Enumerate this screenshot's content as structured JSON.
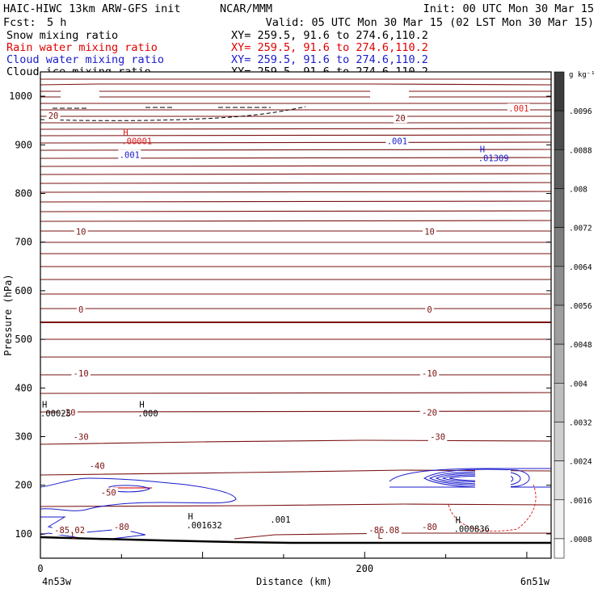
{
  "header": {
    "model": "HAIC-HIWC 13km ARW-GFS init",
    "org": "NCAR/MMM",
    "init": "Init: 00 UTC Mon 30 Mar 15",
    "fcst_label": "Fcst:",
    "fcst_value": "5 h",
    "valid": "Valid: 05 UTC Mon 30 Mar 15 (02 LST Mon 30 Mar 15)",
    "fields": [
      {
        "name": "Snow mixing ratio",
        "xy": "XY= 259.5, 91.6 to 274.6,110.2",
        "color": "#000000"
      },
      {
        "name": "Rain water mixing ratio",
        "xy": "XY= 259.5, 91.6 to 274.6,110.2",
        "color": "#e00000"
      },
      {
        "name": "Cloud water mixing ratio",
        "xy": "XY= 259.5, 91.6 to 274.6,110.2",
        "color": "#1a1acc"
      },
      {
        "name": "Cloud ice mixing ratio",
        "xy": "XY= 259.5, 91.6 to 274.6,110.2",
        "color": "#000000"
      }
    ]
  },
  "colors": {
    "temperature": "#7a1010",
    "rain": "#e02020",
    "cloud_water": "#1a1acc",
    "snow": "#000000"
  },
  "chart_data": {
    "type": "cross-section contour",
    "xlabel": "Distance (km)",
    "ylabel": "Pressure (hPa)",
    "x_ticks": [
      0,
      200
    ],
    "y_ticks": [
      100,
      200,
      300,
      400,
      500,
      600,
      700,
      800,
      900,
      1000
    ],
    "xlim": [
      0,
      315
    ],
    "ylim": [
      1050,
      50
    ],
    "left_endpoint": "4n53w",
    "right_endpoint": "6n51w",
    "colorbar": {
      "units": "g kg⁻¹",
      "labels": [
        ".0096",
        ".0088",
        ".008",
        ".0072",
        ".0064",
        ".0056",
        ".0048",
        ".004",
        ".0032",
        ".0024",
        ".0016",
        ".0008"
      ]
    },
    "temperature_contours": [
      {
        "value": "-85.02",
        "x": 18,
        "p": 108
      },
      {
        "value": "-86.08",
        "x": 212,
        "p": 108
      },
      {
        "value": "-80",
        "x": 50,
        "p": 115
      },
      {
        "value": "-80",
        "x": 240,
        "p": 115
      },
      {
        "value": "-50",
        "x": 42,
        "p": 185
      },
      {
        "value": "-40",
        "x": 35,
        "p": 240
      },
      {
        "value": "-30",
        "x": 25,
        "p": 300
      },
      {
        "value": "-30",
        "x": 245,
        "p": 300
      },
      {
        "value": "-20",
        "x": 17,
        "p": 350
      },
      {
        "value": "-20",
        "x": 240,
        "p": 350
      },
      {
        "value": "-10",
        "x": 25,
        "p": 430
      },
      {
        "value": "-10",
        "x": 240,
        "p": 430
      },
      {
        "value": "0",
        "x": 25,
        "p": 562
      },
      {
        "value": "0",
        "x": 240,
        "p": 562
      },
      {
        "value": "10",
        "x": 25,
        "p": 722
      },
      {
        "value": "10",
        "x": 240,
        "p": 722
      },
      {
        "value": "20",
        "x": 8,
        "p": 960
      },
      {
        "value": "20",
        "x": 222,
        "p": 955
      }
    ],
    "extrema_labels": [
      {
        "mark": "L",
        "x": 18,
        "p": 90,
        "color": "#7a1010"
      },
      {
        "mark": "L",
        "x": 207,
        "p": 90,
        "color": "#7a1010"
      },
      {
        "mark": "H",
        "x": 90,
        "p": 130,
        "value": ".001632",
        "color": "#000000"
      },
      {
        "mark": "H",
        "x": 255,
        "p": 122,
        "value": ".000836",
        "color": "#000000"
      },
      {
        "mark": "H",
        "x": 0,
        "p": 360,
        "value": ".00025",
        "color": "#000000"
      },
      {
        "mark": "H",
        "x": 60,
        "p": 360,
        "value": ".000",
        "color": "#000000"
      },
      {
        "mark": "H",
        "x": 50,
        "p": 920,
        "value": ".00001",
        "color": "#e02020"
      },
      {
        "mark": "H",
        "x": 270,
        "p": 885,
        "value": ".01309",
        "color": "#1a1acc"
      }
    ],
    "mixing_ratio_labels": [
      {
        "text": ".001",
        "x": 148,
        "p": 130,
        "color": "#000000"
      },
      {
        "text": ".001",
        "x": 55,
        "p": 880,
        "color": "#1a1acc"
      },
      {
        "text": ".001",
        "x": 220,
        "p": 908,
        "color": "#1a1acc"
      },
      {
        "text": ".001",
        "x": 295,
        "p": 975,
        "color": "#e02020"
      }
    ]
  }
}
